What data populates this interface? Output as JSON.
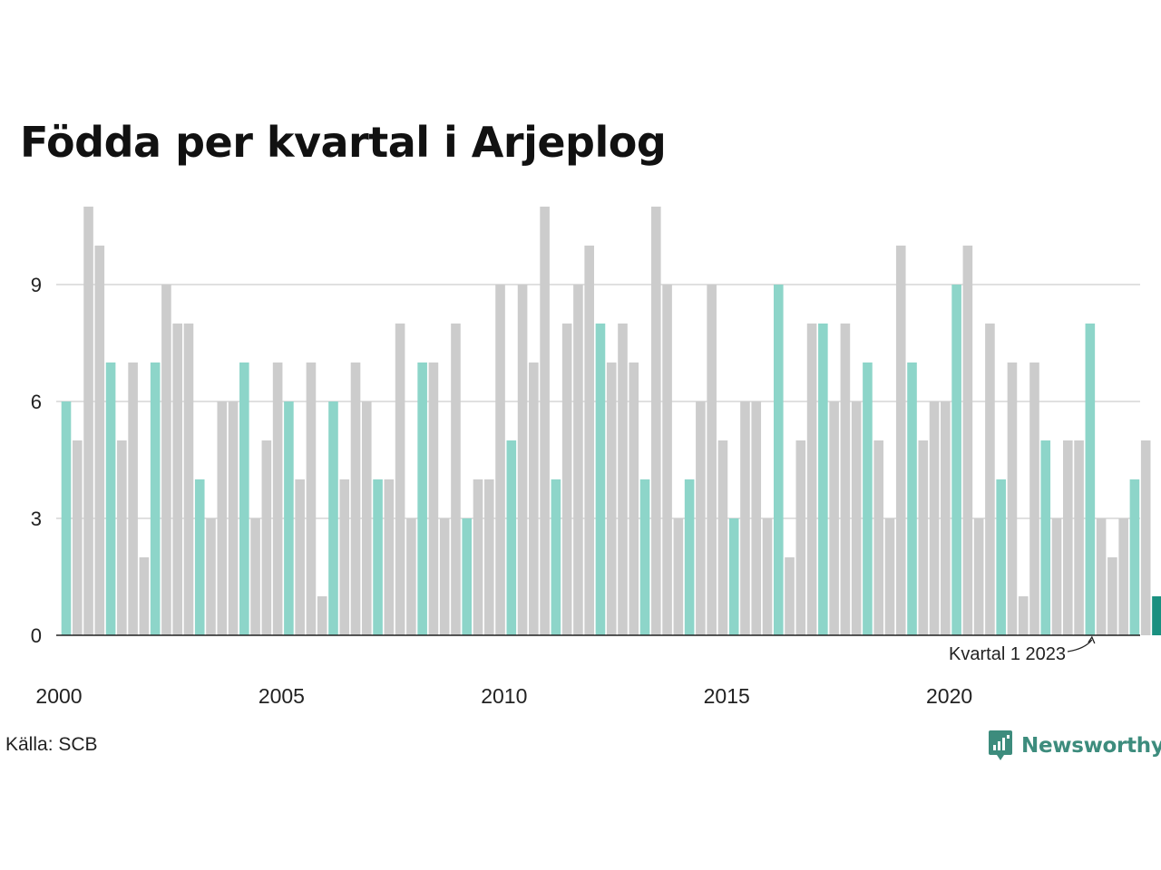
{
  "title": "Födda per kvartal i Arjeplog",
  "source": "Källa: SCB",
  "brand": "Newsworthy",
  "colors": {
    "q1": "#8dd5c9",
    "other": "#cccccc",
    "latest": "#1a9080",
    "grid": "#e0e0e0",
    "axis": "#222222",
    "brand": "#3d8c7d"
  },
  "chart_data": {
    "type": "bar",
    "title": "Födda per kvartal i Arjeplog",
    "xlabel": "",
    "ylabel": "",
    "ylim": [
      0,
      11
    ],
    "yticks": [
      0,
      3,
      6,
      9
    ],
    "grid": true,
    "xticks": [
      "2000",
      "2005",
      "2010",
      "2015",
      "2020"
    ],
    "start": "2000 Q1",
    "values": [
      6,
      5,
      11,
      10,
      7,
      5,
      7,
      2,
      7,
      9,
      8,
      8,
      4,
      3,
      6,
      6,
      7,
      3,
      5,
      7,
      6,
      4,
      7,
      1,
      6,
      4,
      7,
      6,
      4,
      4,
      8,
      3,
      7,
      7,
      3,
      8,
      3,
      4,
      4,
      9,
      5,
      9,
      7,
      11,
      4,
      8,
      9,
      10,
      8,
      7,
      8,
      7,
      4,
      11,
      9,
      3,
      4,
      6,
      9,
      5,
      3,
      6,
      6,
      3,
      9,
      2,
      5,
      8,
      8,
      6,
      8,
      6,
      7,
      5,
      3,
      10,
      7,
      5,
      6,
      6,
      9,
      10,
      3,
      8,
      4,
      7,
      1,
      7,
      5,
      3,
      5,
      5,
      8,
      3,
      2,
      3,
      4,
      5,
      1
    ],
    "annotation": "Kvartal 1 2023"
  }
}
